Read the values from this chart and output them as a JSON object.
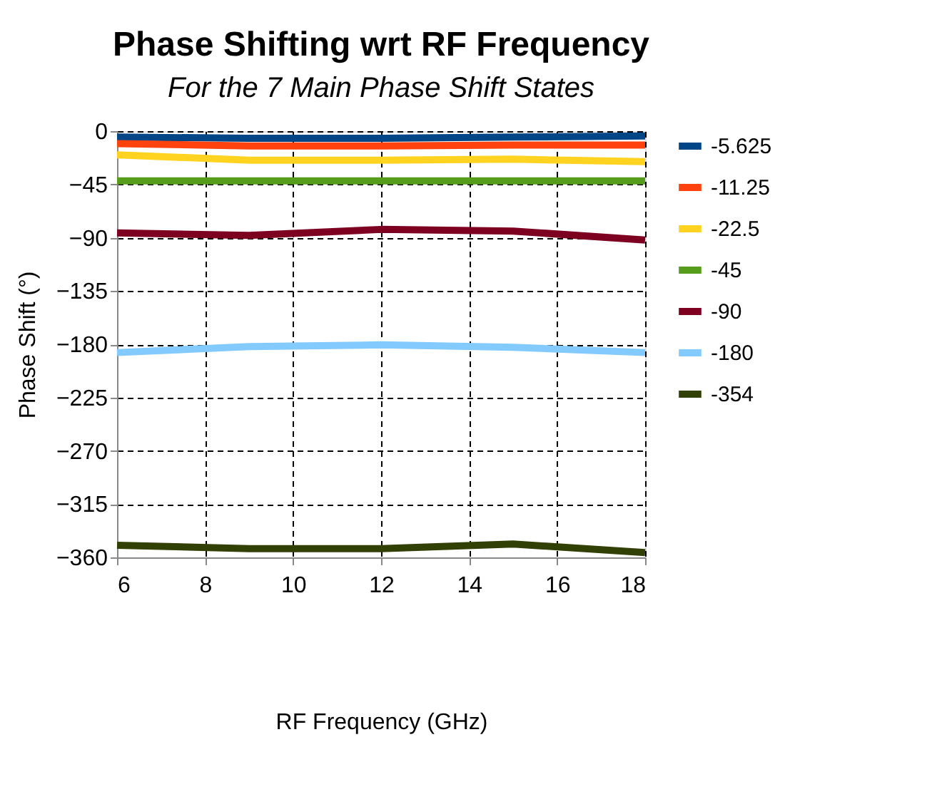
{
  "chart_data": {
    "type": "line",
    "title": "Phase Shifting wrt RF Frequency",
    "subtitle": "For the 7 Main Phase Shift States",
    "xlabel": "RF Frequency (GHz)",
    "ylabel": "Phase Shift (°)",
    "x": [
      6,
      9,
      12,
      15,
      18
    ],
    "series": [
      {
        "name": "-5.625",
        "color": "#004586",
        "values": [
          -5,
          -6,
          -6,
          -5,
          -4
        ]
      },
      {
        "name": "-11.25",
        "color": "#ff420e",
        "values": [
          -10.5,
          -12.5,
          -12.5,
          -11.7,
          -11.7
        ]
      },
      {
        "name": "-22.5",
        "color": "#ffd320",
        "values": [
          -20,
          -24.5,
          -24.5,
          -23.7,
          -25.7
        ]
      },
      {
        "name": "-45",
        "color": "#579d1c",
        "values": [
          -42,
          -42,
          -42,
          -42,
          -42
        ]
      },
      {
        "name": "-90",
        "color": "#7e0021",
        "values": [
          -86,
          -88,
          -83,
          -84.4,
          -92
        ]
      },
      {
        "name": "-180",
        "color": "#83caff",
        "values": [
          -187,
          -182,
          -180.5,
          -182.6,
          -187
        ]
      },
      {
        "name": "-354",
        "color": "#314004",
        "values": [
          -349.7,
          -352.6,
          -352.6,
          -348.7,
          -355.9
        ]
      }
    ],
    "xlim": [
      6,
      18
    ],
    "xticks": [
      6,
      8,
      10,
      12,
      14,
      16,
      18
    ],
    "ylim": [
      -360,
      0
    ],
    "yticks": [
      0,
      -45,
      -90,
      -135,
      -180,
      -225,
      -270,
      -315,
      -360
    ],
    "grid": true,
    "legend": "right",
    "marker": "none",
    "line_style": "solid"
  }
}
